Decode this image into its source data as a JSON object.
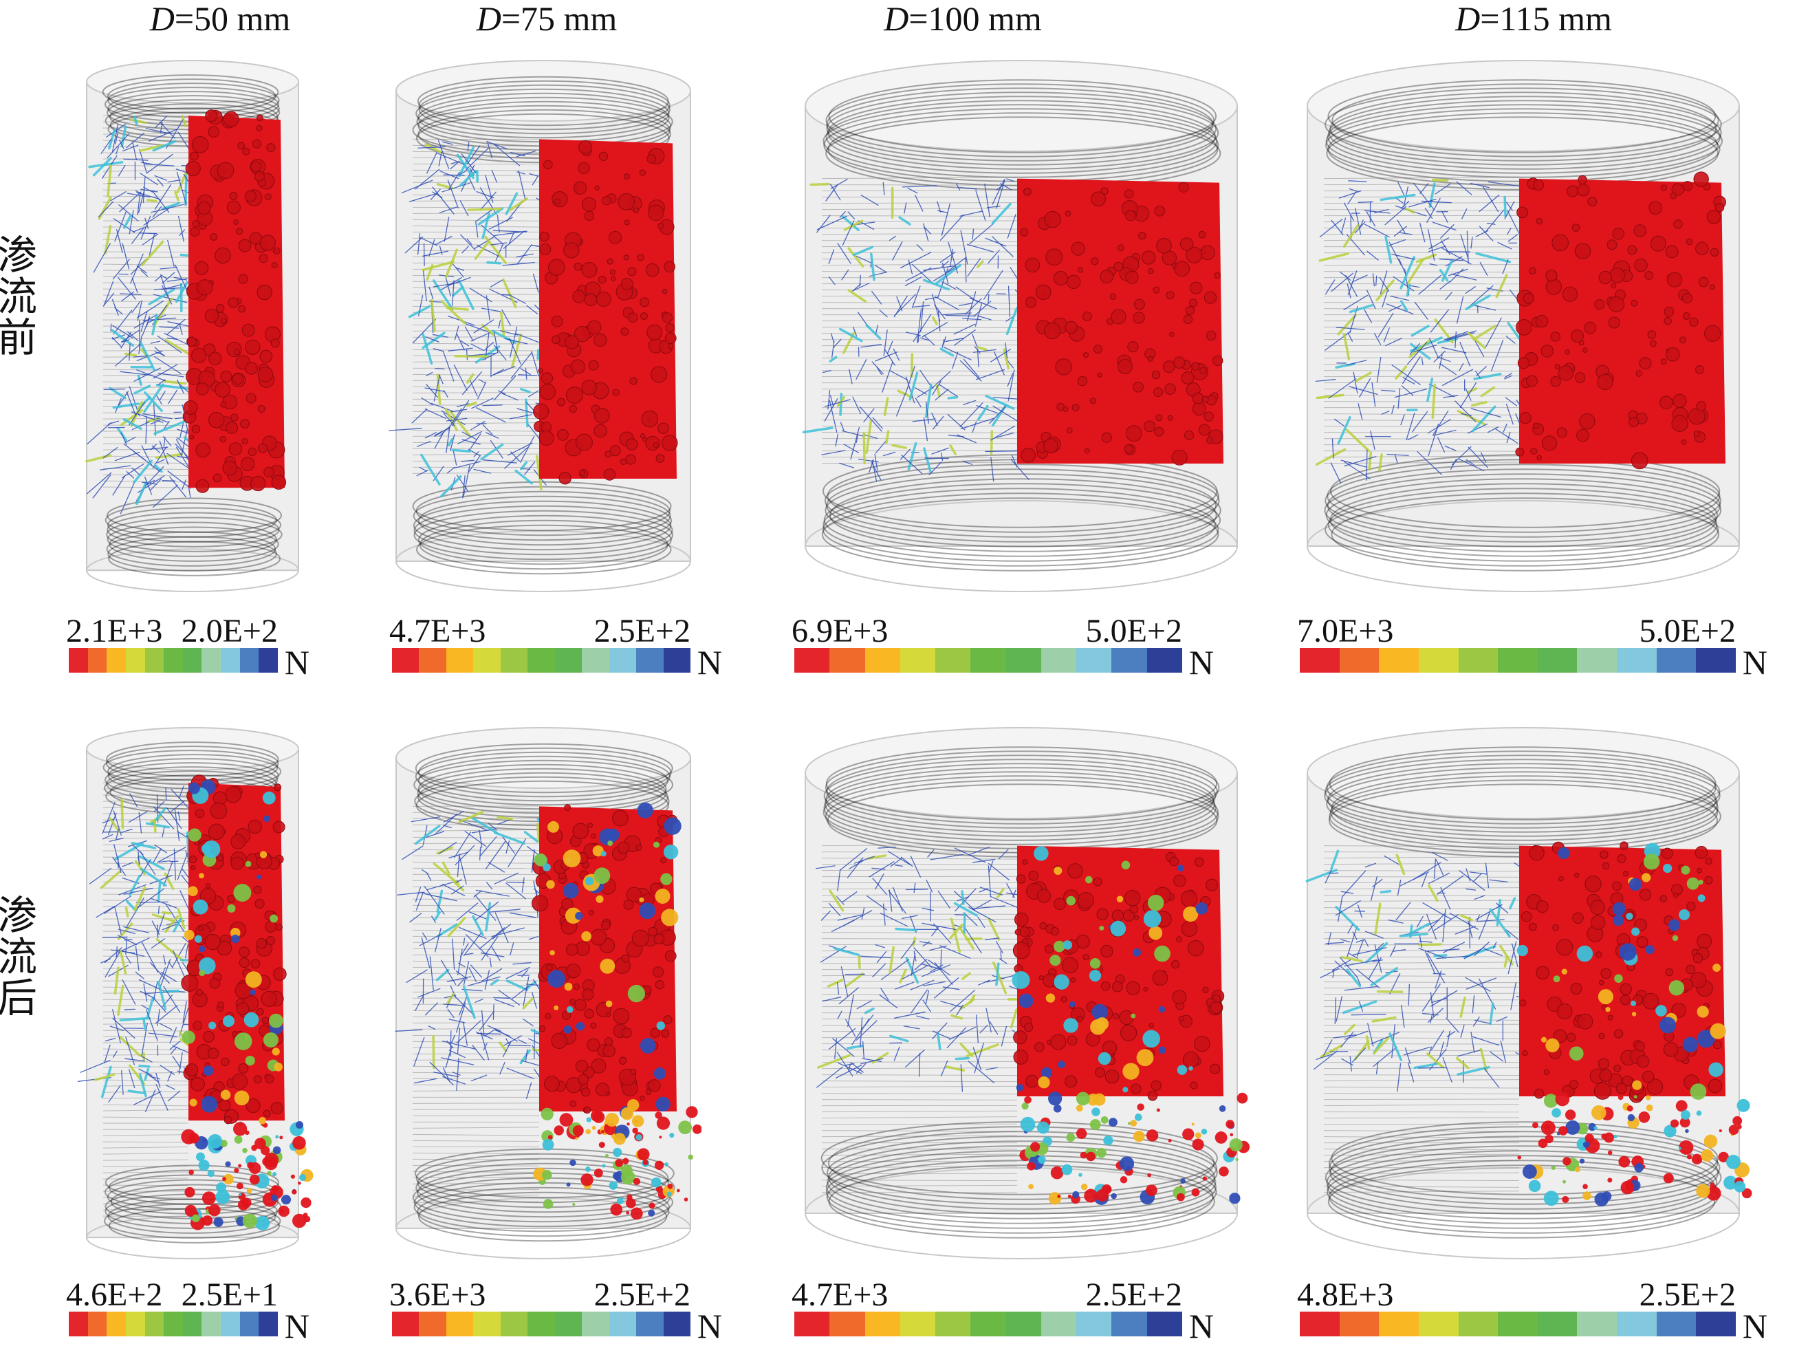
{
  "columns": [
    {
      "prefix": "D",
      "label": "=50 mm"
    },
    {
      "prefix": "D",
      "label": "=75 mm"
    },
    {
      "prefix": "D",
      "label": "=100 mm"
    },
    {
      "prefix": "D",
      "label": "=115 mm"
    }
  ],
  "rows": [
    {
      "label": "渗流前"
    },
    {
      "label": "渗流后"
    }
  ],
  "legends": {
    "r0": [
      {
        "max": "2.1E+3",
        "min": "2.0E+2",
        "unit": "N"
      },
      {
        "max": "4.7E+3",
        "min": "2.5E+2",
        "unit": "N"
      },
      {
        "max": "6.9E+3",
        "min": "5.0E+2",
        "unit": "N"
      },
      {
        "max": "7.0E+3",
        "min": "5.0E+2",
        "unit": "N"
      }
    ],
    "r1": [
      {
        "max": "4.6E+2",
        "min": "2.5E+1",
        "unit": "N"
      },
      {
        "max": "3.6E+3",
        "min": "2.5E+2",
        "unit": "N"
      },
      {
        "max": "4.7E+3",
        "min": "2.5E+2",
        "unit": "N"
      },
      {
        "max": "4.8E+3",
        "min": "2.5E+2",
        "unit": "N"
      }
    ]
  },
  "colorbar": [
    "#e4262c",
    "#ef6a2b",
    "#f9b823",
    "#d5d93a",
    "#9bc743",
    "#6ab944",
    "#5fb552",
    "#9dd0a8",
    "#84c8de",
    "#4c7fc0",
    "#2e3f97"
  ],
  "colors": {
    "ball": "#e0141b",
    "chain_blue": "#2f4db5",
    "chain_cyan": "#3cc0d8",
    "shell": "#cfcfcf"
  }
}
